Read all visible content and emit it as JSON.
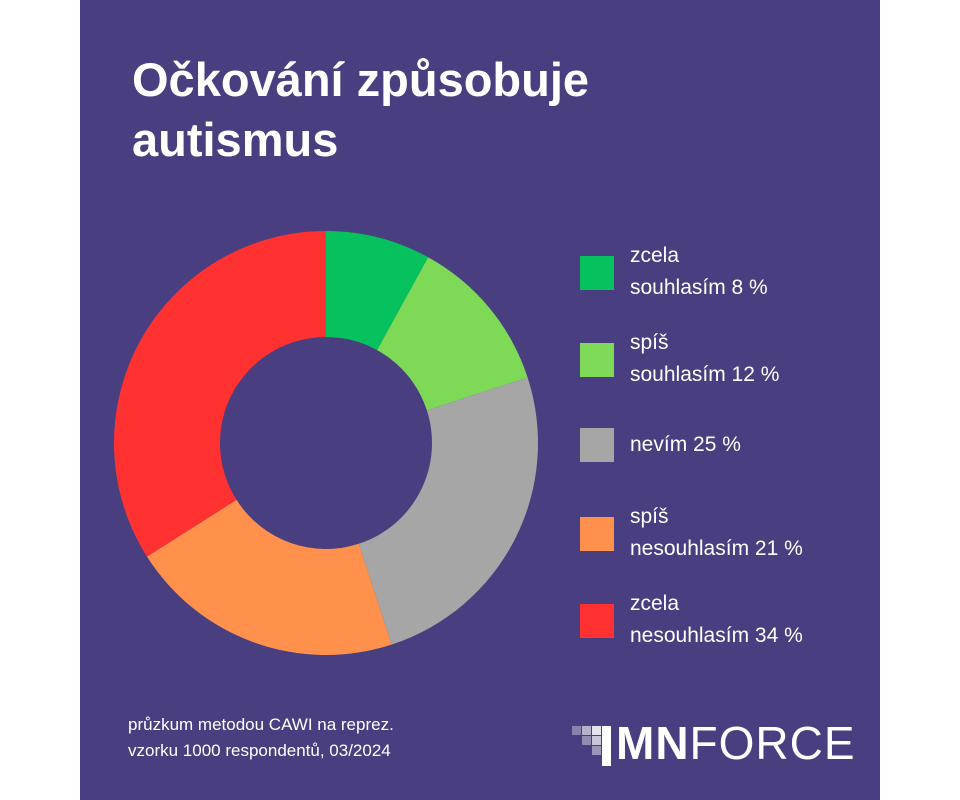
{
  "chart_data": {
    "type": "pie",
    "variant": "donut",
    "title_lines": [
      "Očkování způsobuje",
      "autismus"
    ],
    "categories": [
      "zcela souhlasím",
      "spíš souhlasím",
      "nevím",
      "spíš nesouhlasím",
      "zcela nesouhlasím"
    ],
    "values": [
      8,
      12,
      25,
      21,
      34
    ],
    "colors": [
      "#05c25e",
      "#7ed957",
      "#a6a6a6",
      "#ff914d",
      "#ff3131"
    ],
    "legend_placement": "right",
    "legend": [
      {
        "lines": [
          "zcela",
          "souhlasím 8 %"
        ],
        "color": "#05c25e"
      },
      {
        "lines": [
          "spíš",
          "souhlasím 12 %"
        ],
        "color": "#7ed957"
      },
      {
        "lines": [
          "nevím 25 %"
        ],
        "color": "#a6a6a6"
      },
      {
        "lines": [
          "spíš",
          "nesouhlasím 21 %"
        ],
        "color": "#ff914d"
      },
      {
        "lines": [
          "zcela",
          "nesouhlasím 34 %"
        ],
        "color": "#ff3131"
      }
    ]
  },
  "footnote": [
    "průzkum metodou CAWI na reprez.",
    "vzorku 1000 respondentů, 03/2024"
  ],
  "logo": {
    "bold": "MN",
    "light": "FORCE"
  },
  "colors": {
    "background": "#493f80",
    "text": "#ffffff"
  }
}
